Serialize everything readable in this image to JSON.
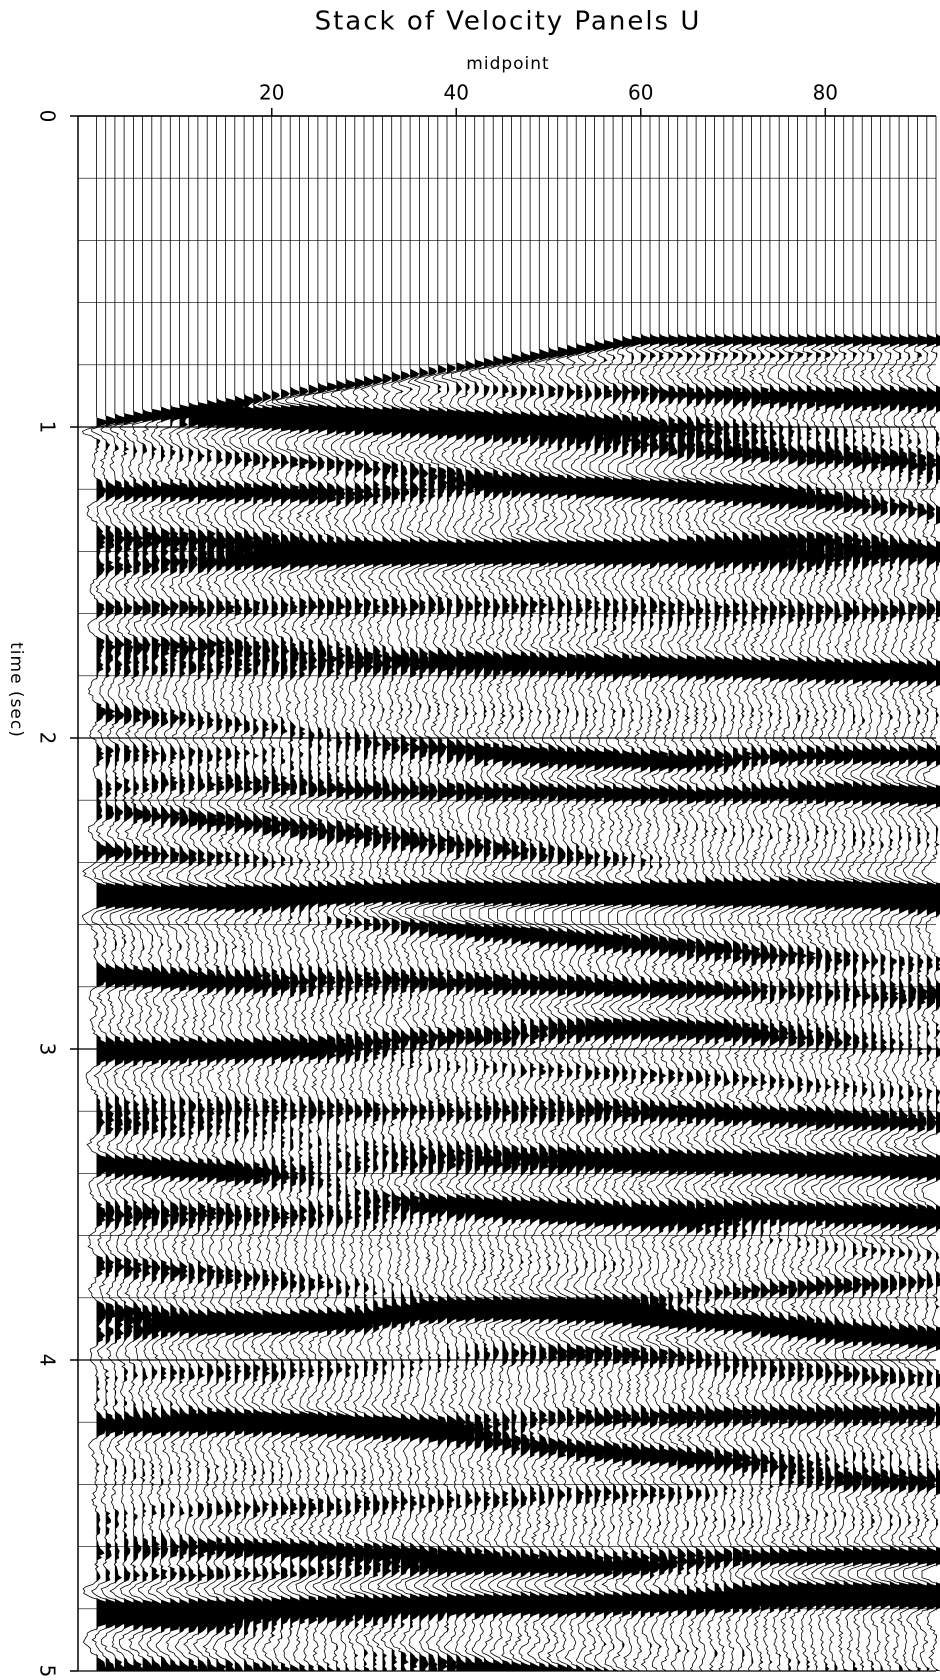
{
  "chart_data": {
    "type": "seismic",
    "title": "Stack of Velocity Panels U",
    "x_label": "midpoint",
    "y_label": "time (sec)",
    "xlim": [
      -1,
      92
    ],
    "xticks": [
      20,
      40,
      60,
      80
    ],
    "ylim": [
      0,
      5
    ],
    "yticks": [
      0,
      1,
      2,
      3,
      4,
      5
    ],
    "y_inverted": true,
    "grid": true,
    "color": "#000000"
  }
}
